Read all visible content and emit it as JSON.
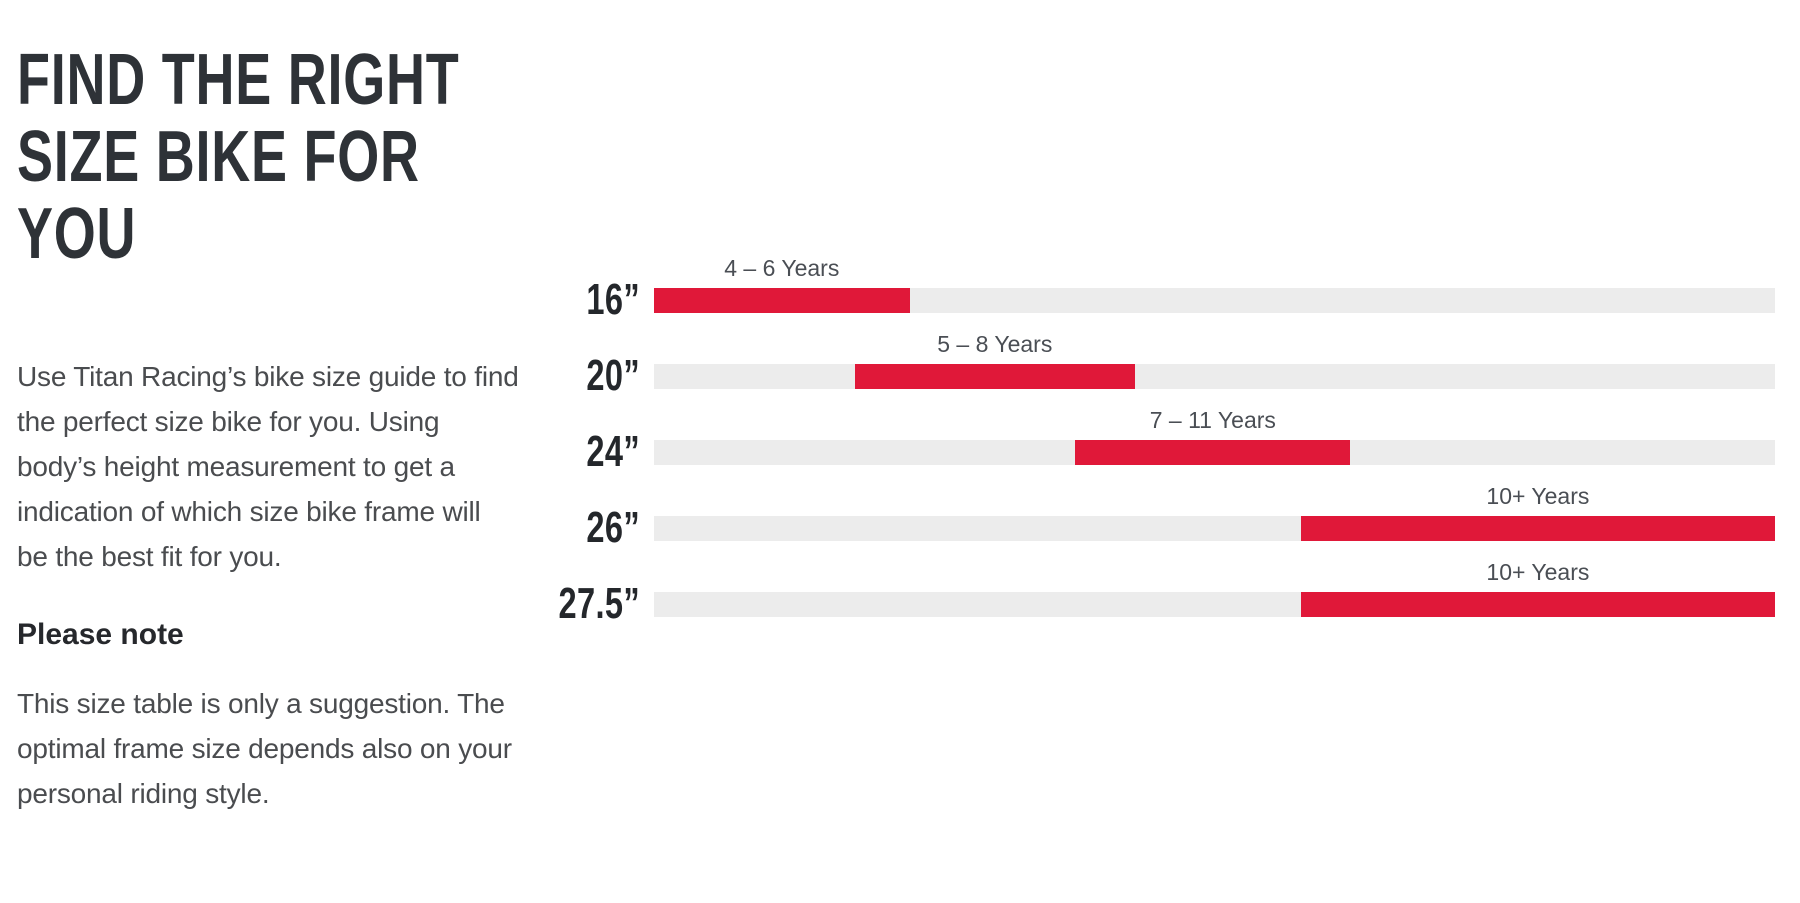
{
  "page": {
    "title": "FIND THE RIGHT\nSIZE BIKE FOR\nYOU",
    "intro": "Use Titan Racing’s bike size guide to find\nthe perfect size bike for you. Using\nbody’s height measurement to get a\nindication of which size bike frame will\nbe the best fit for you.",
    "note_heading": "Please note",
    "note_body": "This size table is only a suggestion. The\noptimal frame size depends also on your\npersonal riding style."
  },
  "chart_data": {
    "type": "bar",
    "orientation": "horizontal",
    "title": "",
    "xlabel": "",
    "ylabel": "",
    "axis_range_pct": [
      0,
      100
    ],
    "grid": false,
    "legend": false,
    "track_color": "#ececec",
    "bar_color": "#e01839",
    "categories": [
      "16”",
      "20”",
      "24”",
      "26”",
      "27.5”"
    ],
    "rows": [
      {
        "size": "16”",
        "age": "4 – 6 Years",
        "start_pct": 0,
        "width_pct": 22.8
      },
      {
        "size": "20”",
        "age": "5 – 8 Years",
        "start_pct": 17.9,
        "width_pct": 25.0
      },
      {
        "size": "24”",
        "age": "7 – 11 Years",
        "start_pct": 37.6,
        "width_pct": 24.5
      },
      {
        "size": "26”",
        "age": "10+ Years",
        "start_pct": 57.7,
        "width_pct": 42.3
      },
      {
        "size": "27.5”",
        "age": "10+ Years",
        "start_pct": 57.7,
        "width_pct": 42.3
      }
    ]
  }
}
